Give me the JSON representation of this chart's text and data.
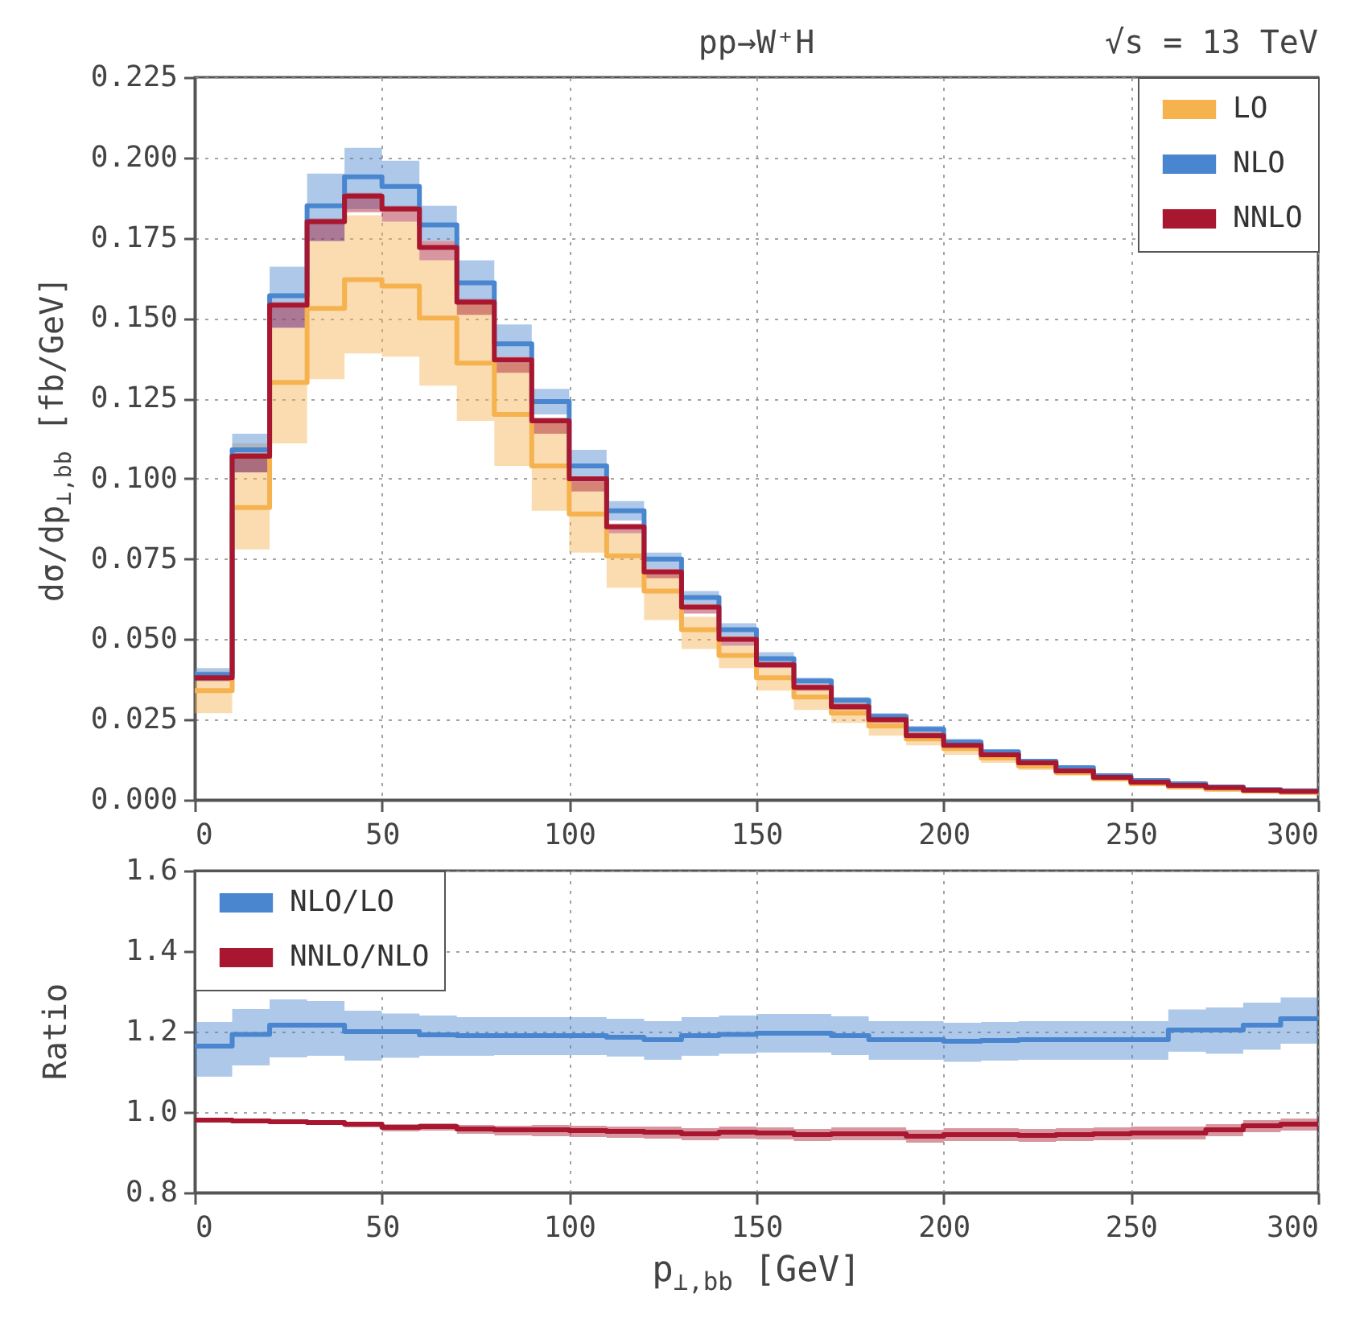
{
  "chart_data": [
    {
      "type": "step",
      "title": "pp→W⁺H",
      "annotations": [
        "√s = 13 TeV"
      ],
      "ylabel": "dσ/dp$_{⊥,bb}$ [fb/GeV]",
      "x": [
        0,
        10,
        20,
        30,
        40,
        50,
        60,
        70,
        80,
        90,
        100,
        110,
        120,
        130,
        140,
        150,
        160,
        170,
        180,
        190,
        200,
        210,
        220,
        230,
        240,
        250,
        260,
        270,
        280,
        290
      ],
      "xlim": [
        0,
        300
      ],
      "xticks": [
        0,
        50,
        100,
        150,
        200,
        250,
        300
      ],
      "ylim": [
        0,
        0.225
      ],
      "yticks": [
        {
          "value": 0,
          "label": "0.000"
        },
        0.025,
        {
          "value": 0.05,
          "label": "0.050"
        },
        0.075,
        {
          "value": 0.1,
          "label": "0.100"
        },
        0.125,
        {
          "value": 0.15,
          "label": "0.150"
        },
        0.175,
        {
          "value": 0.2,
          "label": "0.200"
        },
        0.225
      ],
      "grid": true,
      "legend": "top right",
      "series": [
        {
          "name": "LO",
          "color": "#f5b24f",
          "values": [
            0.034,
            0.091,
            0.13,
            0.153,
            0.162,
            0.16,
            0.15,
            0.136,
            0.12,
            0.104,
            0.089,
            0.076,
            0.065,
            0.053,
            0.045,
            0.038,
            0.032,
            0.027,
            0.023,
            0.019,
            0.016,
            0.013,
            0.0105,
            0.0085,
            0.0065,
            0.005,
            0.004,
            0.0033,
            0.0027,
            0.0023
          ],
          "lower": [
            0.027,
            0.078,
            0.111,
            0.131,
            0.139,
            0.138,
            0.129,
            0.118,
            0.104,
            0.09,
            0.077,
            0.066,
            0.056,
            0.047,
            0.041,
            0.034,
            0.028,
            0.024,
            0.02,
            0.017,
            0.014,
            0.0115,
            0.0093,
            0.0075,
            0.0058,
            0.0044,
            0.0035,
            0.0029,
            0.0024,
            0.002
          ],
          "upper": [
            0.04,
            0.111,
            0.147,
            0.174,
            0.182,
            0.18,
            0.168,
            0.155,
            0.136,
            0.118,
            0.099,
            0.083,
            0.07,
            0.057,
            0.048,
            0.041,
            0.035,
            0.03,
            0.025,
            0.021,
            0.018,
            0.0145,
            0.0117,
            0.0095,
            0.0073,
            0.0056,
            0.0045,
            0.0037,
            0.003,
            0.0026
          ]
        },
        {
          "name": "NLO",
          "color": "#4a86cf",
          "values": [
            0.039,
            0.109,
            0.157,
            0.185,
            0.194,
            0.191,
            0.179,
            0.161,
            0.142,
            0.124,
            0.104,
            0.09,
            0.075,
            0.063,
            0.053,
            0.044,
            0.037,
            0.031,
            0.026,
            0.022,
            0.018,
            0.015,
            0.012,
            0.01,
            0.0075,
            0.006,
            0.005,
            0.004,
            0.0032,
            0.0028
          ],
          "lower": [
            0.037,
            0.102,
            0.147,
            0.174,
            0.184,
            0.184,
            0.174,
            0.155,
            0.138,
            0.12,
            0.1,
            0.087,
            0.072,
            0.061,
            0.051,
            0.042,
            0.036,
            0.03,
            0.025,
            0.021,
            0.017,
            0.0144,
            0.0115,
            0.0096,
            0.0072,
            0.0057,
            0.0048,
            0.0038,
            0.003,
            0.0026
          ],
          "upper": [
            0.041,
            0.114,
            0.166,
            0.195,
            0.203,
            0.199,
            0.185,
            0.168,
            0.148,
            0.128,
            0.109,
            0.093,
            0.077,
            0.065,
            0.055,
            0.046,
            0.038,
            0.032,
            0.027,
            0.023,
            0.019,
            0.0156,
            0.0125,
            0.0104,
            0.0078,
            0.0063,
            0.0052,
            0.0042,
            0.0034,
            0.003
          ]
        },
        {
          "name": "NNLO",
          "color": "#a8172f",
          "values": [
            0.038,
            0.107,
            0.154,
            0.18,
            0.188,
            0.184,
            0.172,
            0.155,
            0.137,
            0.118,
            0.1,
            0.085,
            0.071,
            0.06,
            0.05,
            0.042,
            0.035,
            0.029,
            0.025,
            0.02,
            0.017,
            0.014,
            0.0115,
            0.009,
            0.007,
            0.0055,
            0.0045,
            0.0038,
            0.003,
            0.0026
          ],
          "lower": [
            0.037,
            0.102,
            0.147,
            0.174,
            0.183,
            0.18,
            0.168,
            0.151,
            0.133,
            0.114,
            0.096,
            0.083,
            0.069,
            0.058,
            0.048,
            0.041,
            0.034,
            0.028,
            0.024,
            0.019,
            0.0165,
            0.0135,
            0.011,
            0.0086,
            0.0067,
            0.0052,
            0.0043,
            0.0036,
            0.0028,
            0.0024
          ],
          "upper": [
            0.039,
            0.108,
            0.155,
            0.181,
            0.189,
            0.185,
            0.174,
            0.156,
            0.138,
            0.119,
            0.1,
            0.086,
            0.072,
            0.061,
            0.051,
            0.043,
            0.036,
            0.03,
            0.026,
            0.021,
            0.0175,
            0.0145,
            0.0118,
            0.0093,
            0.0072,
            0.0057,
            0.0047,
            0.004,
            0.0031,
            0.0027
          ]
        }
      ]
    },
    {
      "type": "step",
      "xlabel": "p$_{⊥,bb}$ [GeV]",
      "ylabel": "Ratio",
      "x": [
        0,
        10,
        20,
        30,
        40,
        50,
        60,
        70,
        80,
        90,
        100,
        110,
        120,
        130,
        140,
        150,
        160,
        170,
        180,
        190,
        200,
        210,
        220,
        230,
        240,
        250,
        260,
        270,
        280,
        290
      ],
      "xlim": [
        0,
        300
      ],
      "xticks": [
        0,
        50,
        100,
        150,
        200,
        250,
        300
      ],
      "ylim": [
        0.8,
        1.6
      ],
      "yticks": [
        0.8,
        {
          "value": 1,
          "label": "1.0"
        },
        1.2,
        1.4,
        1.6
      ],
      "grid": true,
      "legend": "top left",
      "series": [
        {
          "name": "NLO/LO",
          "color": "#4a86cf",
          "values": [
            1.164,
            1.193,
            1.216,
            1.216,
            1.2,
            1.2,
            1.192,
            1.19,
            1.19,
            1.19,
            1.19,
            1.186,
            1.18,
            1.19,
            1.193,
            1.196,
            1.196,
            1.19,
            1.18,
            1.18,
            1.176,
            1.178,
            1.18,
            1.18,
            1.18,
            1.18,
            1.204,
            1.204,
            1.216,
            1.232
          ],
          "lower": [
            1.088,
            1.116,
            1.136,
            1.14,
            1.128,
            1.135,
            1.14,
            1.14,
            1.142,
            1.142,
            1.142,
            1.138,
            1.13,
            1.14,
            1.145,
            1.148,
            1.148,
            1.142,
            1.13,
            1.13,
            1.125,
            1.128,
            1.13,
            1.13,
            1.13,
            1.13,
            1.15,
            1.145,
            1.155,
            1.17
          ],
          "upper": [
            1.224,
            1.256,
            1.28,
            1.276,
            1.252,
            1.245,
            1.24,
            1.236,
            1.236,
            1.236,
            1.236,
            1.232,
            1.226,
            1.236,
            1.24,
            1.244,
            1.244,
            1.238,
            1.226,
            1.226,
            1.222,
            1.224,
            1.226,
            1.226,
            1.226,
            1.226,
            1.255,
            1.26,
            1.272,
            1.285
          ]
        },
        {
          "name": "NNLO/NLO",
          "color": "#a8172f",
          "values": [
            0.98,
            0.978,
            0.976,
            0.974,
            0.97,
            0.962,
            0.964,
            0.958,
            0.956,
            0.956,
            0.954,
            0.952,
            0.95,
            0.946,
            0.95,
            0.948,
            0.944,
            0.946,
            0.946,
            0.94,
            0.944,
            0.944,
            0.942,
            0.944,
            0.946,
            0.948,
            0.948,
            0.956,
            0.966,
            0.97
          ],
          "lower": [
            0.976,
            0.974,
            0.972,
            0.968,
            0.962,
            0.952,
            0.954,
            0.946,
            0.942,
            0.94,
            0.938,
            0.936,
            0.934,
            0.93,
            0.934,
            0.932,
            0.928,
            0.93,
            0.93,
            0.924,
            0.928,
            0.928,
            0.926,
            0.928,
            0.93,
            0.932,
            0.932,
            0.94,
            0.95,
            0.954
          ],
          "upper": [
            0.984,
            0.982,
            0.98,
            0.978,
            0.976,
            0.97,
            0.972,
            0.968,
            0.966,
            0.968,
            0.966,
            0.964,
            0.964,
            0.96,
            0.964,
            0.962,
            0.958,
            0.962,
            0.962,
            0.956,
            0.96,
            0.96,
            0.958,
            0.96,
            0.962,
            0.964,
            0.964,
            0.97,
            0.98,
            0.984
          ]
        }
      ]
    }
  ]
}
